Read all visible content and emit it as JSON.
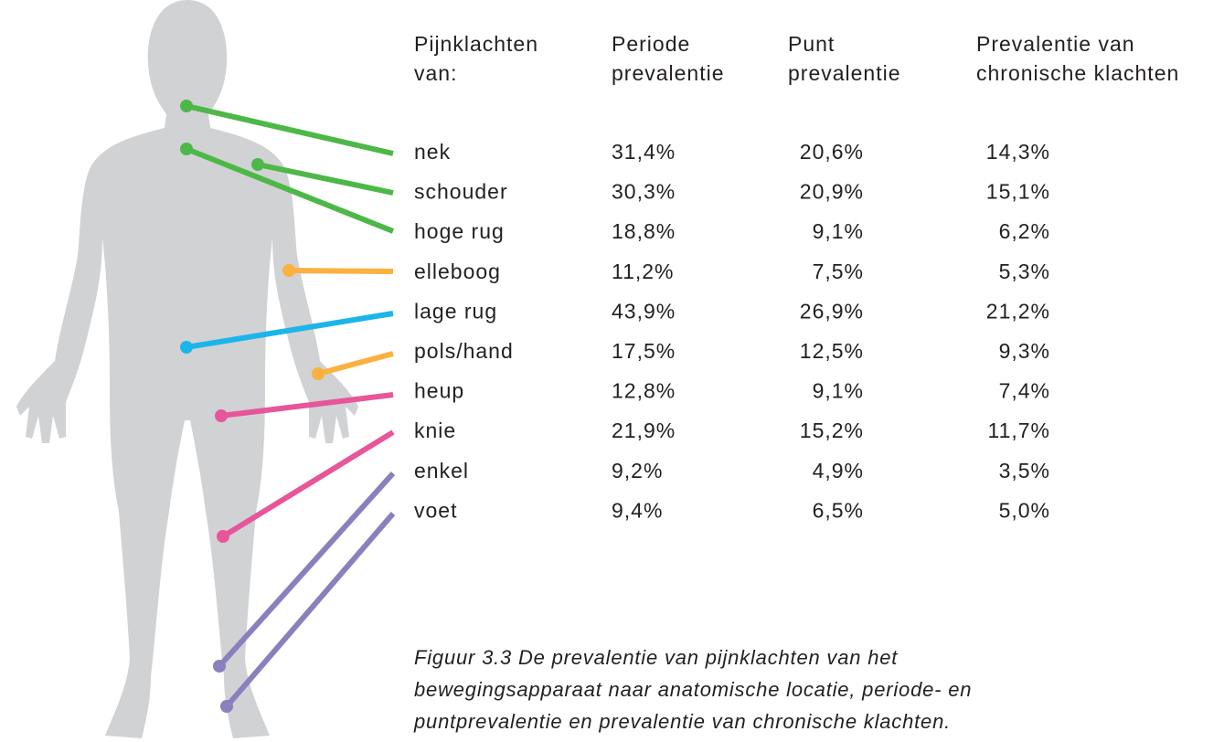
{
  "table": {
    "header": [
      [
        "Pijnklachten",
        "van:"
      ],
      [
        "Periode",
        "prevalentie"
      ],
      [
        "Punt",
        "prevalentie"
      ],
      [
        "Prevalentie van",
        "chronische klachten"
      ]
    ],
    "rows": [
      [
        "nek",
        "31,4%",
        "20,6%",
        "14,3%"
      ],
      [
        "schouder",
        "30,3%",
        "20,9%",
        "15,1%"
      ],
      [
        "hoge rug",
        "18,8%",
        "9,1%",
        "6,2%"
      ],
      [
        "elleboog",
        "11,2%",
        "7,5%",
        "5,3%"
      ],
      [
        "lage rug",
        "43,9%",
        "26,9%",
        "21,2%"
      ],
      [
        "pols/hand",
        "17,5%",
        "12,5%",
        "9,3%"
      ],
      [
        "heup",
        "12,8%",
        "9,1%",
        "7,4%"
      ],
      [
        "knie",
        "21,9%",
        "15,2%",
        "11,7%"
      ],
      [
        "enkel",
        "9,2%",
        "4,9%",
        "3,5%"
      ],
      [
        "voet",
        "9,4%",
        "6,5%",
        "5,0%"
      ]
    ]
  },
  "caption": [
    "Figuur 3.3  De prevalentie van pijnklachten van het",
    "bewegingsapparaat naar anatomische locatie, periode- en",
    "puntprevalentie en prevalentie van chronische klachten."
  ]
}
